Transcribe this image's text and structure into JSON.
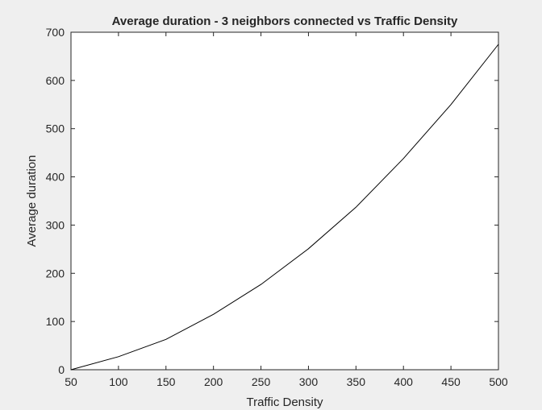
{
  "chart_data": {
    "type": "line",
    "title": "Average duration - 3 neighbors connected vs Traffic Density",
    "xlabel": "Traffic Density",
    "ylabel": "Average duration",
    "xlim": [
      50,
      500
    ],
    "ylim": [
      0,
      700
    ],
    "xticks": [
      50,
      100,
      150,
      200,
      250,
      300,
      350,
      400,
      450,
      500
    ],
    "yticks": [
      0,
      100,
      200,
      300,
      400,
      500,
      600,
      700
    ],
    "grid": false,
    "series": [
      {
        "x": [
          50,
          100,
          150,
          200,
          250,
          300,
          350,
          400,
          450,
          500
        ],
        "values": [
          0,
          27,
          63,
          115,
          177,
          251,
          337,
          438,
          550,
          675
        ],
        "color": "#000000"
      }
    ]
  }
}
